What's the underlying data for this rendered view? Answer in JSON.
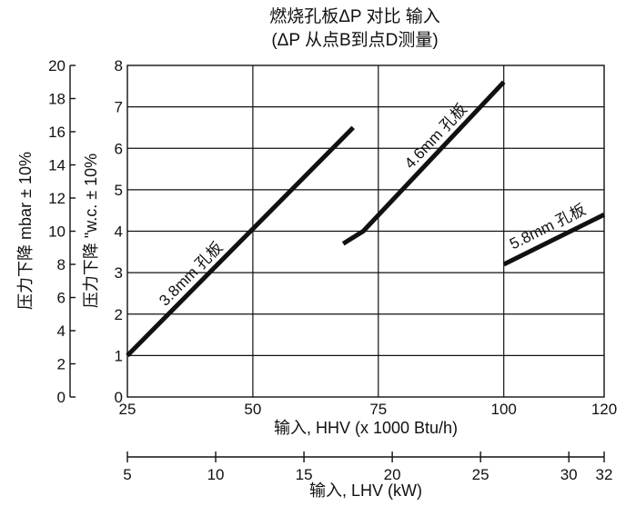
{
  "chart_data": {
    "type": "line",
    "title_line1": "燃烧孔板ΔP 对比 输入",
    "title_line2": "(ΔP 从点B到点D测量)",
    "xlabel": "输入, HHV (x 1000 Btu/h)",
    "x2label": "输入, LHV (kW)",
    "ylabel": "压力下降 \"w.c. ± 10%",
    "y2label": "压力下降 mbar ± 10%",
    "xlim": [
      25,
      120
    ],
    "ylim": [
      0,
      8
    ],
    "y2lim": [
      0,
      20
    ],
    "x2lim": [
      5,
      32
    ],
    "x_ticks": [
      25,
      50,
      75,
      100,
      120
    ],
    "y_ticks": [
      0,
      1,
      2,
      3,
      4,
      5,
      6,
      7,
      8
    ],
    "y2_ticks": [
      0,
      2,
      4,
      6,
      8,
      10,
      12,
      14,
      16,
      18,
      20
    ],
    "x2_ticks": [
      5,
      10,
      15,
      20,
      25,
      30,
      32
    ],
    "grid": true,
    "series": [
      {
        "name": "3.8mm 孔板",
        "x": [
          25,
          70
        ],
        "y": [
          1.0,
          6.5
        ]
      },
      {
        "name": "4.6mm 孔板",
        "x": [
          68,
          72,
          100
        ],
        "y": [
          3.7,
          4.0,
          7.6
        ]
      },
      {
        "name": "5.8mm 孔板",
        "x": [
          100,
          120
        ],
        "y": [
          3.2,
          4.4
        ]
      }
    ]
  }
}
